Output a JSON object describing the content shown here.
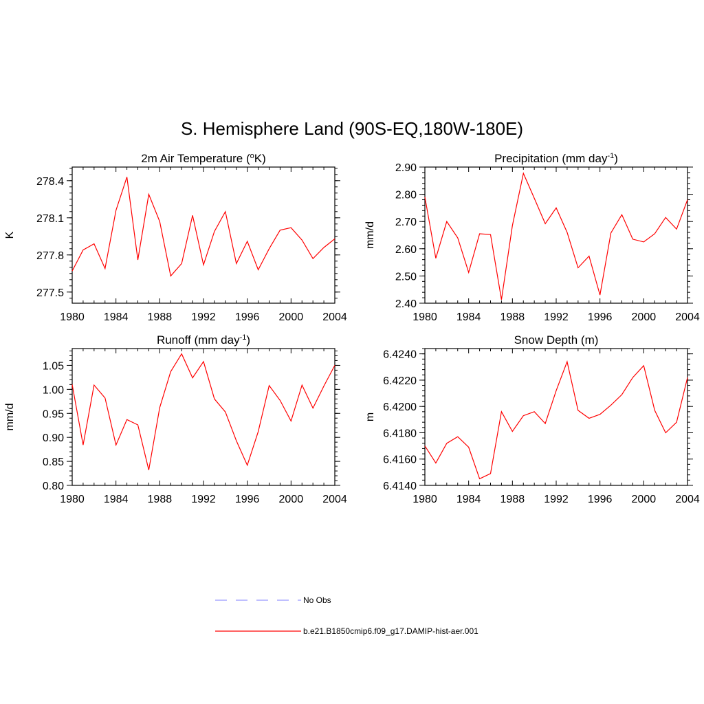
{
  "title": "S. Hemisphere Land (90S-EQ,180W-180E)",
  "legend": {
    "position": "bottom-center",
    "items": [
      {
        "label": "No Obs",
        "color": "#9999ff",
        "style": "dashed"
      },
      {
        "label": "b.e21.B1850cmip6.f09_g17.DAMIP-hist-aer.001",
        "color": "#ff0000",
        "style": "solid"
      }
    ]
  },
  "chart_data": [
    {
      "type": "line",
      "title": "2m Air Temperature (",
      "title_sup": "o",
      "title_after": "K)",
      "ylabel": "K",
      "xlim": [
        1980,
        2004
      ],
      "ylim": [
        277.41,
        278.51
      ],
      "xticks": [
        1980,
        1984,
        1988,
        1992,
        1996,
        2000,
        2004
      ],
      "yticks": [
        277.5,
        277.8,
        278.1,
        278.4
      ],
      "ytick_labels": [
        "277.5",
        "277.8",
        "278.1",
        "278.4"
      ],
      "yminor_step": 0.05,
      "x": [
        1980,
        1981,
        1982,
        1983,
        1984,
        1985,
        1986,
        1987,
        1988,
        1989,
        1990,
        1991,
        1992,
        1993,
        1994,
        1995,
        1996,
        1997,
        1998,
        1999,
        2000,
        2001,
        2002,
        2003,
        2004
      ],
      "series": [
        {
          "color": "#ff0000",
          "values": [
            277.67,
            277.84,
            277.89,
            277.69,
            278.16,
            278.43,
            277.76,
            278.29,
            278.07,
            277.63,
            277.73,
            278.12,
            277.72,
            277.99,
            278.15,
            277.73,
            277.91,
            277.68,
            277.85,
            278.0,
            278.02,
            277.92,
            277.77,
            277.86,
            277.93
          ]
        }
      ]
    },
    {
      "type": "line",
      "title": "Precipitation (mm day",
      "title_sup": "-1",
      "title_after": ")",
      "ylabel": "mm/d",
      "xlim": [
        1980,
        2004
      ],
      "ylim": [
        2.4,
        2.9
      ],
      "xticks": [
        1980,
        1984,
        1988,
        1992,
        1996,
        2000,
        2004
      ],
      "yticks": [
        2.4,
        2.5,
        2.6,
        2.7,
        2.8,
        2.9
      ],
      "ytick_labels": [
        "2.40",
        "2.50",
        "2.60",
        "2.70",
        "2.80",
        "2.90"
      ],
      "yminor_step": 0.02,
      "x": [
        1980,
        1981,
        1982,
        1983,
        1984,
        1985,
        1986,
        1987,
        1988,
        1989,
        1990,
        1991,
        1992,
        1993,
        1994,
        1995,
        1996,
        1997,
        1998,
        1999,
        2000,
        2001,
        2002,
        2003,
        2004
      ],
      "series": [
        {
          "color": "#ff0000",
          "values": [
            2.79,
            2.565,
            2.7,
            2.64,
            2.513,
            2.655,
            2.652,
            2.413,
            2.685,
            2.877,
            2.785,
            2.692,
            2.75,
            2.66,
            2.53,
            2.573,
            2.43,
            2.658,
            2.725,
            2.635,
            2.625,
            2.655,
            2.715,
            2.672,
            2.78
          ]
        }
      ]
    },
    {
      "type": "line",
      "title": "Runoff (mm day",
      "title_sup": "-1",
      "title_after": ")",
      "ylabel": "mm/d",
      "xlim": [
        1980,
        2004
      ],
      "ylim": [
        0.8,
        1.085
      ],
      "xticks": [
        1980,
        1984,
        1988,
        1992,
        1996,
        2000,
        2004
      ],
      "yticks": [
        0.8,
        0.85,
        0.9,
        0.95,
        1.0,
        1.05
      ],
      "ytick_labels": [
        "0.80",
        "0.85",
        "0.90",
        "0.95",
        "1.00",
        "1.05"
      ],
      "yminor_step": 0.01,
      "x": [
        1980,
        1981,
        1982,
        1983,
        1984,
        1985,
        1986,
        1987,
        1988,
        1989,
        1990,
        1991,
        1992,
        1993,
        1994,
        1995,
        1996,
        1997,
        1998,
        1999,
        2000,
        2001,
        2002,
        2003,
        2004
      ],
      "series": [
        {
          "color": "#ff0000",
          "values": [
            1.01,
            0.884,
            1.009,
            0.982,
            0.884,
            0.937,
            0.926,
            0.832,
            0.962,
            1.037,
            1.074,
            1.024,
            1.058,
            0.98,
            0.953,
            0.893,
            0.842,
            0.912,
            1.008,
            0.977,
            0.934,
            1.009,
            0.961,
            1.007,
            1.05
          ]
        }
      ]
    },
    {
      "type": "line",
      "title": "Snow Depth (m)",
      "title_sup": "",
      "title_after": "",
      "ylabel": "m",
      "xlim": [
        1980,
        2004
      ],
      "ylim": [
        6.414,
        6.4244
      ],
      "xticks": [
        1980,
        1984,
        1988,
        1992,
        1996,
        2000,
        2004
      ],
      "yticks": [
        6.414,
        6.416,
        6.418,
        6.42,
        6.422,
        6.424
      ],
      "ytick_labels": [
        "6.4140",
        "6.4160",
        "6.4180",
        "6.4200",
        "6.4220",
        "6.4240"
      ],
      "yminor_step": 0.0004,
      "x": [
        1980,
        1981,
        1982,
        1983,
        1984,
        1985,
        1986,
        1987,
        1988,
        1989,
        1990,
        1991,
        1992,
        1993,
        1994,
        1995,
        1996,
        1997,
        1998,
        1999,
        2000,
        2001,
        2002,
        2003,
        2004
      ],
      "series": [
        {
          "color": "#ff0000",
          "values": [
            6.417,
            6.4157,
            6.4172,
            6.4177,
            6.4169,
            6.4145,
            6.4149,
            6.4196,
            6.4181,
            6.4193,
            6.4196,
            6.4187,
            6.4212,
            6.4234,
            6.4197,
            6.4191,
            6.4194,
            6.4201,
            6.4209,
            6.4222,
            6.4231,
            6.4197,
            6.418,
            6.4188,
            6.4222
          ]
        }
      ]
    }
  ]
}
